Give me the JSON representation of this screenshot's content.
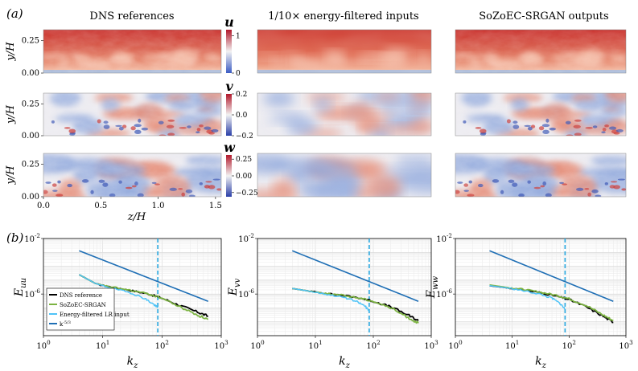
{
  "panel_a_label": "(a)",
  "panel_b_label": "(b)",
  "column_titles": [
    "DNS references",
    "1/10× energy-filtered inputs",
    "SoZoEC-SRGAN outputs"
  ],
  "field_rows": [
    {
      "component": "u",
      "ylabel": "y/H",
      "yticks": [
        "0.25",
        "0.00"
      ],
      "colorbar_ticks": [
        "1",
        "0"
      ]
    },
    {
      "component": "v",
      "ylabel": "y/H",
      "yticks": [
        "0.25",
        "0.00"
      ],
      "colorbar_ticks": [
        "0.2",
        "0.0",
        "−0.2"
      ]
    },
    {
      "component": "w",
      "ylabel": "y/H",
      "yticks": [
        "0.25",
        "0.00"
      ],
      "colorbar_ticks": [
        "0.25",
        "0.00",
        "−0.25"
      ]
    }
  ],
  "field_xlabel": "z/H",
  "field_xticks": [
    "0.0",
    "0.5",
    "1.0",
    "1.5"
  ],
  "colors": {
    "red": "#c9302c",
    "blue": "#3b5cc4",
    "dns": "#000000",
    "srgan": "#7cb342",
    "lr": "#4fc3f7",
    "ref": "#1f6fb5"
  },
  "chart_data": [
    {
      "type": "line",
      "ylabel": "E_uu",
      "xlabel": "k_z",
      "x_scale": "log",
      "y_scale": "log",
      "xlim": [
        1,
        1000
      ],
      "ylim": [
        1e-09,
        0.01
      ],
      "xticks": [
        "10^0",
        "10^1",
        "10^2",
        "10^3"
      ],
      "yticks": [
        "10^-2",
        "10^-6"
      ],
      "cutoff_kz": 85,
      "grid": true,
      "legend": "lower-left",
      "series": [
        {
          "name": "DNS reference",
          "x": [
            4,
            8,
            15,
            30,
            60,
            100,
            200,
            400,
            600
          ],
          "y": [
            2.5e-05,
            5e-06,
            3e-06,
            1.8e-06,
            1e-06,
            5e-07,
            1.5e-07,
            5e-08,
            2.5e-08
          ]
        },
        {
          "name": "SoZoEC-SRGAN",
          "x": [
            4,
            8,
            15,
            30,
            60,
            100,
            200,
            400,
            600
          ],
          "y": [
            2.5e-05,
            5e-06,
            3e-06,
            1.8e-06,
            1e-06,
            5e-07,
            1.2e-07,
            3e-08,
            1.5e-08
          ]
        },
        {
          "name": "Energy-filtered LR input",
          "x": [
            4,
            8,
            15,
            30,
            50,
            70,
            85
          ],
          "y": [
            2.5e-05,
            5e-06,
            2.5e-06,
            1.2e-06,
            5e-07,
            2e-07,
            1e-07
          ]
        },
        {
          "name": "k^{-5/3}",
          "x": [
            4,
            600
          ],
          "y": [
            0.0013,
            3e-07
          ]
        }
      ]
    },
    {
      "type": "line",
      "ylabel": "E_vv",
      "xlabel": "k_z",
      "x_scale": "log",
      "y_scale": "log",
      "xlim": [
        1,
        1000
      ],
      "ylim": [
        1e-09,
        0.01
      ],
      "xticks": [
        "10^0",
        "10^1",
        "10^2",
        "10^3"
      ],
      "yticks": [
        "10^-2",
        "10^-6"
      ],
      "cutoff_kz": 85,
      "grid": true,
      "series": [
        {
          "name": "DNS reference",
          "x": [
            4,
            8,
            15,
            30,
            60,
            100,
            200,
            400,
            600
          ],
          "y": [
            2.5e-06,
            1.6e-06,
            1.1e-06,
            8e-07,
            5e-07,
            3e-07,
            1.2e-07,
            3e-08,
            1.2e-08
          ]
        },
        {
          "name": "SoZoEC-SRGAN",
          "x": [
            4,
            8,
            15,
            30,
            60,
            100,
            200,
            400,
            600
          ],
          "y": [
            2.5e-06,
            1.6e-06,
            1.1e-06,
            8e-07,
            5e-07,
            3e-07,
            1e-07,
            2e-08,
            8e-09
          ]
        },
        {
          "name": "Energy-filtered LR input",
          "x": [
            4,
            8,
            15,
            30,
            50,
            70,
            85
          ],
          "y": [
            2.5e-06,
            1.6e-06,
            1e-06,
            6e-07,
            3e-07,
            1.5e-07,
            6e-08
          ]
        },
        {
          "name": "k^{-5/3}",
          "x": [
            4,
            600
          ],
          "y": [
            0.0013,
            3e-07
          ]
        }
      ]
    },
    {
      "type": "line",
      "ylabel": "E_ww",
      "xlabel": "k_z",
      "x_scale": "log",
      "y_scale": "log",
      "xlim": [
        1,
        1000
      ],
      "ylim": [
        1e-09,
        0.01
      ],
      "xticks": [
        "10^0",
        "10^1",
        "10^2",
        "10^3"
      ],
      "yticks": [
        "10^-2",
        "10^-6"
      ],
      "cutoff_kz": 85,
      "grid": true,
      "series": [
        {
          "name": "DNS reference",
          "x": [
            4,
            8,
            15,
            30,
            60,
            100,
            200,
            400,
            600
          ],
          "y": [
            4e-06,
            2.8e-06,
            2e-06,
            1.3e-06,
            7e-07,
            4e-07,
            1.2e-07,
            2.5e-08,
            9e-09
          ]
        },
        {
          "name": "SoZoEC-SRGAN",
          "x": [
            4,
            8,
            15,
            30,
            60,
            100,
            200,
            400,
            600
          ],
          "y": [
            4.5e-06,
            3e-06,
            2.2e-06,
            1.4e-06,
            8e-07,
            4.5e-07,
            1.5e-07,
            3e-08,
            1.2e-08
          ]
        },
        {
          "name": "Energy-filtered LR input",
          "x": [
            4,
            8,
            15,
            30,
            50,
            70,
            85
          ],
          "y": [
            4e-06,
            2.8e-06,
            1.8e-06,
            1e-06,
            5e-07,
            2e-07,
            8e-08
          ]
        },
        {
          "name": "k^{-5/3}",
          "x": [
            4,
            600
          ],
          "y": [
            0.0013,
            3e-07
          ]
        }
      ]
    }
  ]
}
